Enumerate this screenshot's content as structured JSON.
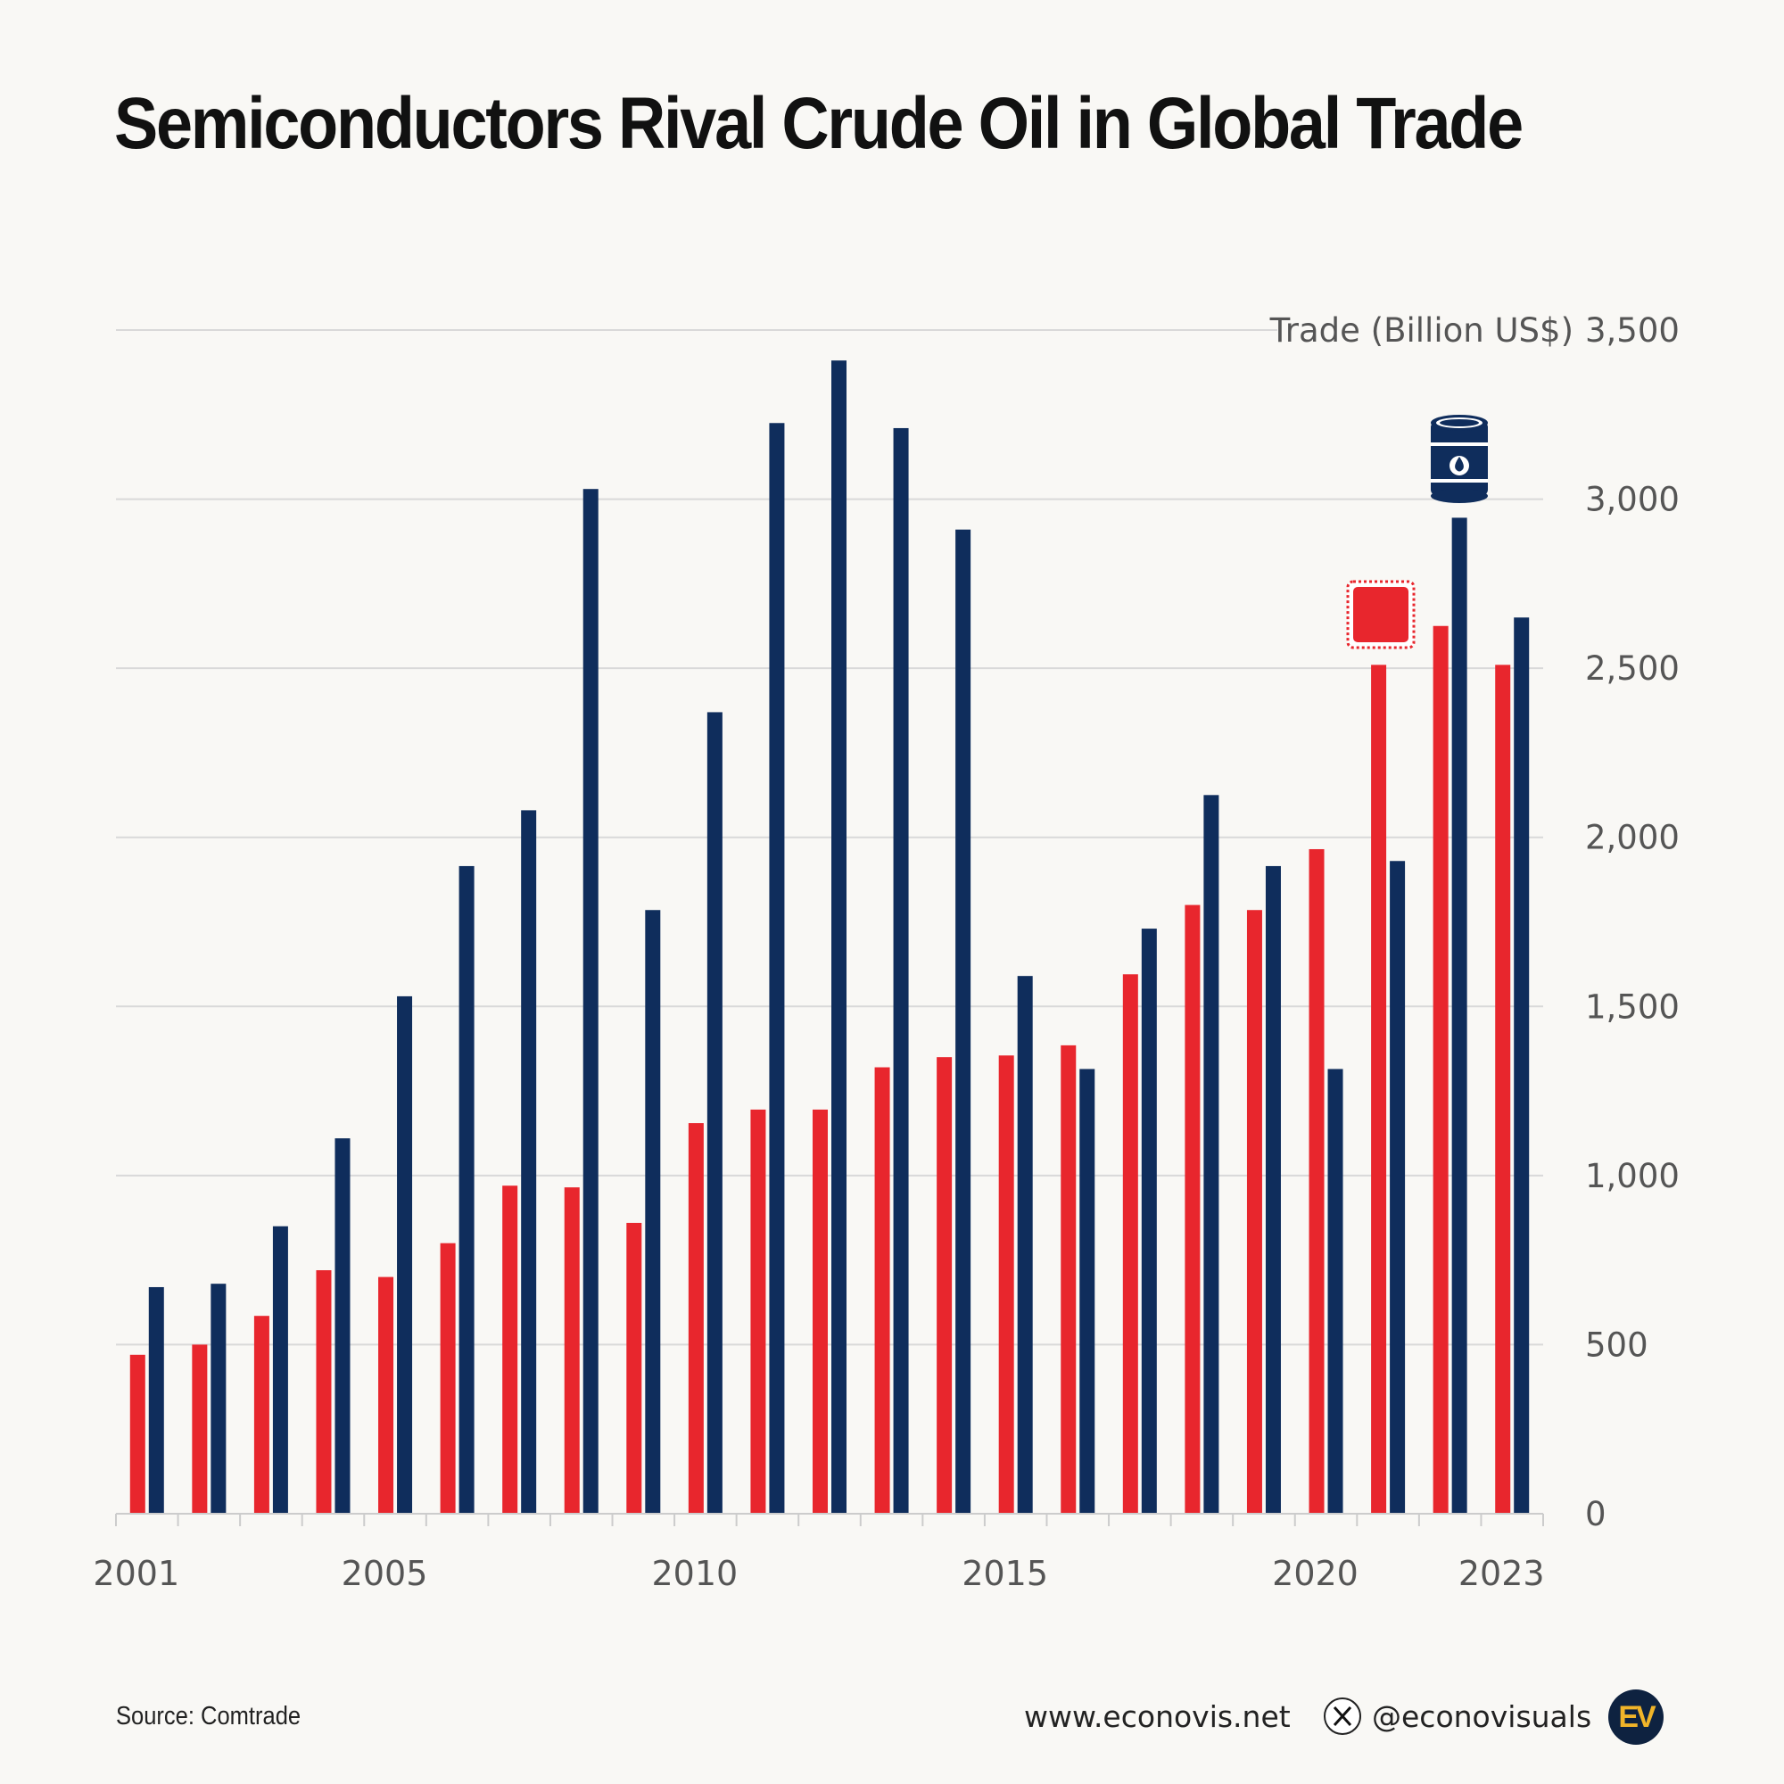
{
  "title": "Semiconductors Rival Crude Oil in Global Trade",
  "chart_data": {
    "type": "bar",
    "title": "Semiconductors Rival Crude Oil in Global Trade",
    "ylabel": "Trade (Billion US$)",
    "xlabel": "",
    "ylim": [
      0,
      3500
    ],
    "yticks": [
      0,
      500,
      1000,
      1500,
      2000,
      2500,
      3000,
      3500
    ],
    "ytick_labels": [
      "0",
      "500",
      "1,000",
      "1,500",
      "2,000",
      "2,500",
      "3,000",
      "3,500"
    ],
    "xtick_labels": [
      "2001",
      "2005",
      "2010",
      "2015",
      "2020",
      "2023"
    ],
    "grid": true,
    "categories": [
      2001,
      2002,
      2003,
      2004,
      2005,
      2006,
      2007,
      2008,
      2009,
      2010,
      2011,
      2012,
      2013,
      2014,
      2015,
      2016,
      2017,
      2018,
      2019,
      2020,
      2021,
      2022,
      2023
    ],
    "series": [
      {
        "name": "Semiconductors",
        "color": "#e8262d",
        "icon": "microchip-icon",
        "values": [
          470,
          500,
          585,
          720,
          700,
          800,
          970,
          965,
          860,
          1155,
          1195,
          1195,
          1320,
          1350,
          1355,
          1385,
          1595,
          1800,
          1785,
          1965,
          2510,
          2625,
          2510
        ]
      },
      {
        "name": "Crude Oil",
        "color": "#0f2d5c",
        "icon": "oil-barrel-icon",
        "values": [
          670,
          680,
          850,
          1110,
          1530,
          1915,
          2080,
          3030,
          1785,
          2370,
          3225,
          3410,
          3210,
          2910,
          1590,
          1315,
          1730,
          2125,
          1915,
          1315,
          1930,
          2945,
          2650
        ]
      }
    ]
  },
  "footer": {
    "source": "Source: Comtrade",
    "website": "www.econovis.net",
    "handle": "@econovisuals",
    "logo_text": "EV"
  }
}
